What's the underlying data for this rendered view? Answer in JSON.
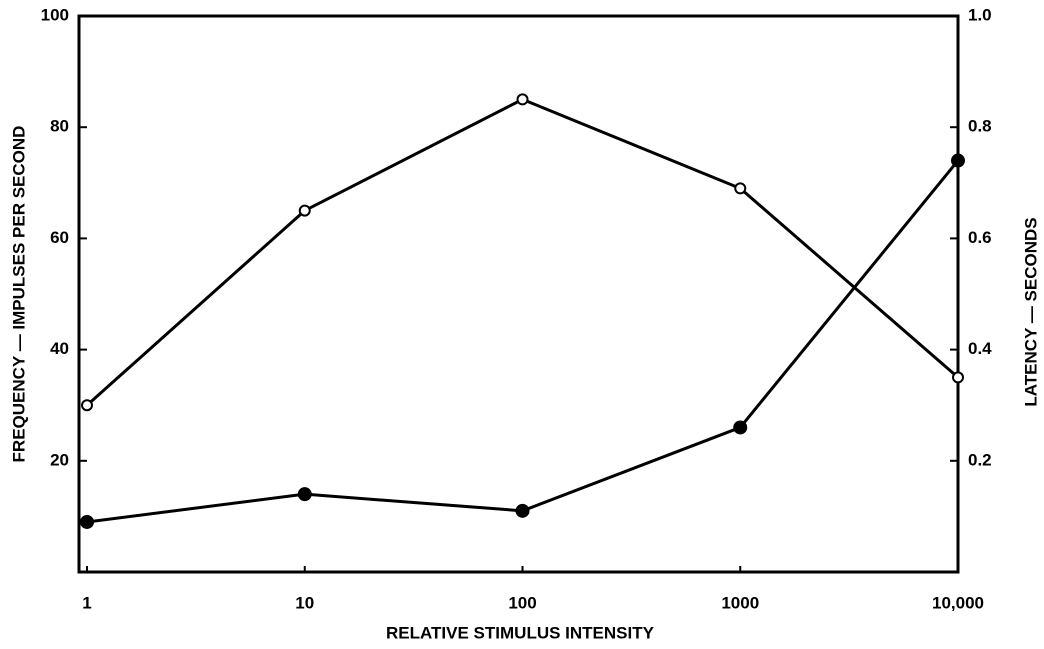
{
  "chart_data": {
    "type": "line",
    "x_label": "RELATIVE STIMULUS INTENSITY",
    "y_label": "FREQUENCY — IMPULSES PER SECOND",
    "y2_label": "LATENCY — SECONDS",
    "x": [
      1,
      10,
      100,
      1000,
      10000
    ],
    "x_log": true,
    "xlim": [
      1,
      10000
    ],
    "xticks": [
      1,
      10,
      100,
      1000,
      {
        "value": 10000,
        "label": "10,000"
      }
    ],
    "ylim": [
      0,
      100
    ],
    "yticks": [
      20,
      40,
      60,
      80,
      100
    ],
    "y2lim": [
      0,
      1
    ],
    "y2ticks": [
      0.2,
      0.4,
      0.6,
      0.8,
      {
        "value": 1,
        "label": "1.0"
      }
    ],
    "series": [
      {
        "color": "#000000",
        "marker": "open",
        "values": [
          30,
          65,
          85,
          69,
          35
        ]
      },
      {
        "color": "#000000",
        "marker": "filled",
        "axis": "y2",
        "values": [
          0.09,
          0.14,
          0.11,
          0.26,
          0.74
        ]
      }
    ]
  }
}
